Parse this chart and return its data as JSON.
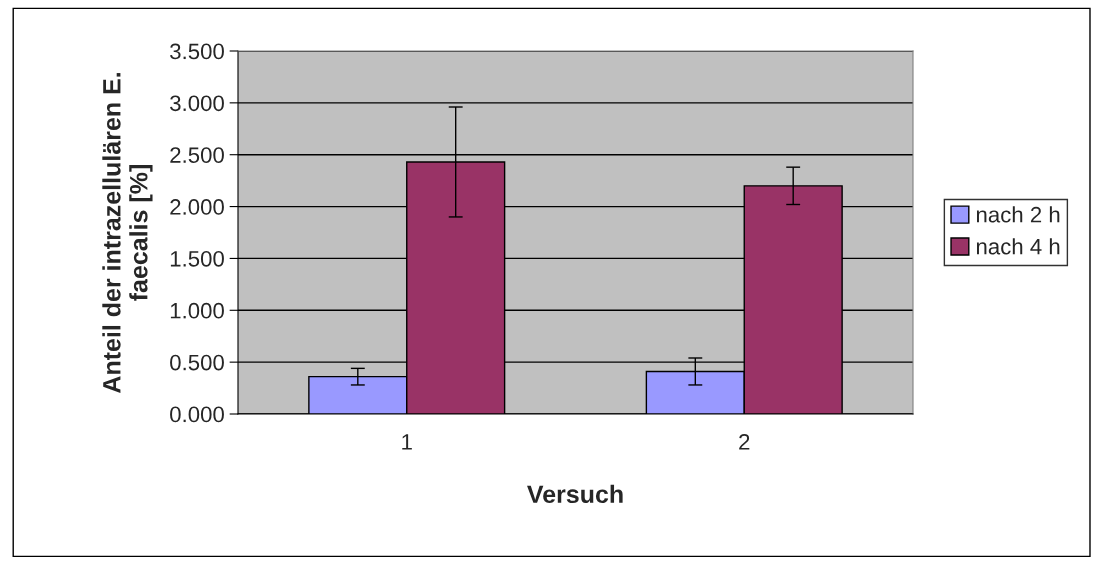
{
  "chart_data": {
    "type": "bar",
    "xlabel": "Versuch",
    "ylabel": "Anteil der intrazellulären E.\nfaecalis [%]",
    "categories": [
      "1",
      "2"
    ],
    "series": [
      {
        "name": "nach 2 h",
        "color": "#9999ff",
        "values": [
          0.36,
          0.41
        ],
        "errors": [
          0.08,
          0.13
        ]
      },
      {
        "name": "nach 4 h",
        "color": "#993366",
        "values": [
          2.43,
          2.2
        ],
        "errors": [
          0.53,
          0.18
        ]
      }
    ],
    "ylim": [
      0,
      3.5
    ],
    "yticks": [
      {
        "value": 0,
        "label": "0.000"
      },
      {
        "value": 0.5,
        "label": "0.500"
      },
      {
        "value": 1,
        "label": "1.000"
      },
      {
        "value": 1.5,
        "label": "1.500"
      },
      {
        "value": 2,
        "label": "2.000"
      },
      {
        "value": 2.5,
        "label": "2.500"
      },
      {
        "value": 3,
        "label": "3.000"
      },
      {
        "value": 3.5,
        "label": "3.500"
      }
    ],
    "grid": "y",
    "legend": "right"
  }
}
